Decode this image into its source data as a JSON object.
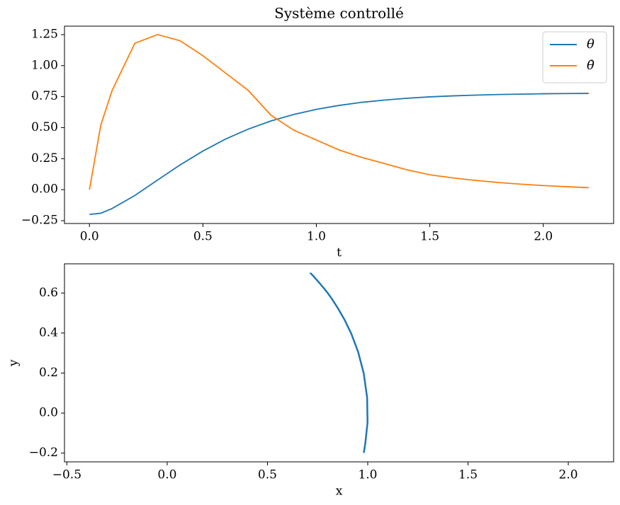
{
  "chart_data": [
    {
      "type": "line",
      "title": "Système controllé",
      "x_label": "t",
      "x": [
        0,
        0.05,
        0.1,
        0.2,
        0.3,
        0.4,
        0.5,
        0.6,
        0.7,
        0.8,
        0.9,
        1.0,
        1.1,
        1.2,
        1.3,
        1.4,
        1.5,
        1.6,
        1.7,
        1.8,
        1.9,
        2.0,
        2.1,
        2.2
      ],
      "series": [
        {
          "name": "θ",
          "color": "#1f77b4",
          "values": [
            -0.2,
            -0.19,
            -0.152,
            -0.047,
            0.077,
            0.2,
            0.311,
            0.408,
            0.488,
            0.554,
            0.606,
            0.647,
            0.679,
            0.704,
            0.722,
            0.737,
            0.748,
            0.756,
            0.762,
            0.767,
            0.77,
            0.773,
            0.775,
            0.776
          ]
        },
        {
          "name": "θ̇",
          "color": "#ff7f0e",
          "values": [
            0,
            0.52,
            0.8,
            1.18,
            1.25,
            1.2,
            1.08,
            0.94,
            0.8,
            0.6,
            0.48,
            0.4,
            0.32,
            0.26,
            0.21,
            0.16,
            0.12,
            0.095,
            0.075,
            0.058,
            0.044,
            0.033,
            0.024,
            0.016
          ]
        }
      ],
      "xlim": [
        -0.11,
        2.31
      ],
      "ylim": [
        -0.273,
        1.318
      ],
      "xticks": [
        {
          "value": 0,
          "label": "0.0"
        },
        0.5,
        {
          "value": 1,
          "label": "1.0"
        },
        1.5,
        {
          "value": 2,
          "label": "2.0"
        }
      ],
      "yticks": [
        {
          "value": -0.25,
          "label": "−0.25"
        },
        {
          "value": 0,
          "label": "0.00"
        },
        0.25,
        {
          "value": 0.5,
          "label": "0.50"
        },
        0.75,
        {
          "value": 1,
          "label": "1.00"
        },
        1.25
      ],
      "legend": "upper right"
    },
    {
      "type": "line",
      "x_label": "x",
      "y_label": "y",
      "x": [
        0.98,
        0.982,
        0.988,
        0.999,
        0.997,
        0.98,
        0.952,
        0.918,
        0.883,
        0.85,
        0.822,
        0.798,
        0.778,
        0.762,
        0.75,
        0.74,
        0.733,
        0.728,
        0.724,
        0.72,
        0.718,
        0.716,
        0.714,
        0.714
      ],
      "series": [
        {
          "color": "#1f77b4",
          "values": [
            -0.199,
            -0.189,
            -0.151,
            -0.047,
            0.077,
            0.199,
            0.306,
            0.397,
            0.469,
            0.526,
            0.57,
            0.603,
            0.628,
            0.647,
            0.661,
            0.672,
            0.68,
            0.686,
            0.69,
            0.694,
            0.696,
            0.698,
            0.7,
            0.701
          ]
        }
      ],
      "xlim": [
        -0.512,
        2.226
      ],
      "ylim": [
        -0.244,
        0.746
      ],
      "xticks": [
        {
          "value": -0.5,
          "label": "−0.5"
        },
        {
          "value": 0,
          "label": "0.0"
        },
        0.5,
        {
          "value": 1,
          "label": "1.0"
        },
        1.5,
        {
          "value": 2,
          "label": "2.0"
        }
      ],
      "yticks": [
        {
          "value": -0.2,
          "label": "−0.2"
        },
        {
          "value": 0,
          "label": "0.0"
        },
        0.2,
        0.4,
        0.6
      ]
    }
  ]
}
